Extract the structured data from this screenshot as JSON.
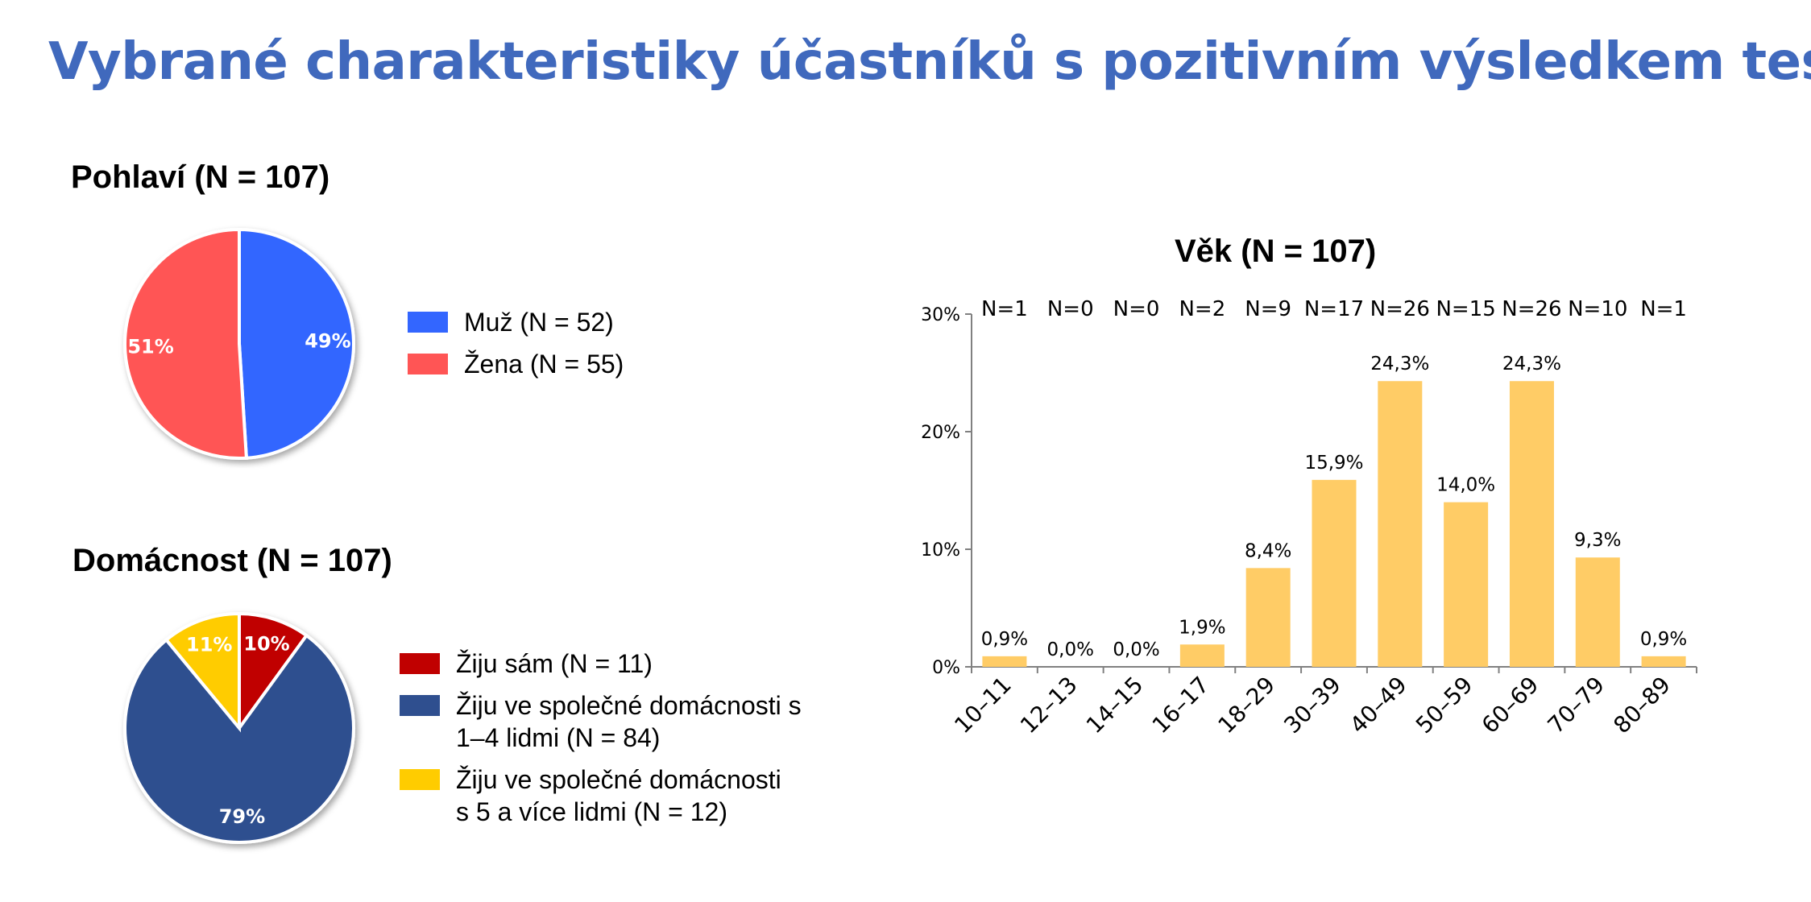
{
  "title": "Vybrané charakteristiky účastníků s pozitivním výsledkem testu",
  "chart_data": [
    {
      "type": "pie",
      "title": "Pohlaví (N = 107)",
      "slices": [
        {
          "name": "Muž (N = 52)",
          "value": 49,
          "label": "49%",
          "color": "#3366ff"
        },
        {
          "name": "Žena (N = 55)",
          "value": 51,
          "label": "51%",
          "color": "#ff5555"
        }
      ],
      "legend_position": "right"
    },
    {
      "type": "pie",
      "title": "Domácnost (N = 107)",
      "slices": [
        {
          "name": "Žiju sám (N = 11)",
          "value": 10,
          "label": "10%",
          "color": "#c00000"
        },
        {
          "name": "Žiju ve společné domácnosti s\n1–4 lidmi (N = 84)",
          "value": 79,
          "label": "79%",
          "color": "#2f4f8f"
        },
        {
          "name": "Žiju ve společné domácnosti\ns 5 a více lidmi (N = 12)",
          "value": 11,
          "label": "11%",
          "color": "#ffcc00"
        }
      ],
      "legend_position": "right"
    },
    {
      "type": "bar",
      "title": "Věk (N = 107)",
      "categories": [
        "10–11",
        "12–13",
        "14–15",
        "16–17",
        "18–29",
        "30–39",
        "40–49",
        "50–59",
        "60–69",
        "70–79",
        "80–89"
      ],
      "values": [
        0.9,
        0.0,
        0.0,
        1.9,
        8.4,
        15.9,
        24.3,
        14.0,
        24.3,
        9.3,
        0.9
      ],
      "value_labels": [
        "0,9%",
        "0,0%",
        "0,0%",
        "1,9%",
        "8,4%",
        "15,9%",
        "24,3%",
        "14,0%",
        "24,3%",
        "9,3%",
        "0,9%"
      ],
      "counts": [
        "N=1",
        "N=0",
        "N=0",
        "N=2",
        "N=9",
        "N=17",
        "N=26",
        "N=15",
        "N=26",
        "N=10",
        "N=1"
      ],
      "yticks": [
        0,
        10,
        20,
        30
      ],
      "ytick_labels": [
        "0%",
        "10%",
        "20%",
        "30%"
      ],
      "ylim": [
        0,
        30
      ],
      "xlabel": "",
      "ylabel": "",
      "bar_color": "#ffcc66",
      "grid": false
    }
  ]
}
